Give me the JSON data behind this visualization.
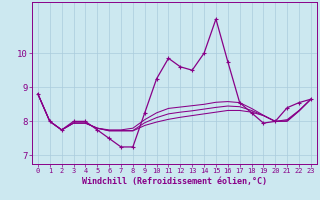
{
  "xlabel": "Windchill (Refroidissement éolien,°C)",
  "background_color": "#cce8f0",
  "line_color": "#880088",
  "marker": "+",
  "x": [
    0,
    1,
    2,
    3,
    4,
    5,
    6,
    7,
    8,
    9,
    10,
    11,
    12,
    13,
    14,
    15,
    16,
    17,
    18,
    19,
    20,
    21,
    22,
    23
  ],
  "series_main": [
    8.8,
    8.0,
    7.75,
    8.0,
    8.0,
    7.75,
    7.5,
    7.25,
    7.25,
    8.25,
    9.25,
    9.85,
    9.6,
    9.5,
    10.0,
    11.0,
    9.75,
    8.55,
    8.25,
    7.95,
    8.0,
    8.4,
    8.55,
    8.65
  ],
  "series_smooth1": [
    8.8,
    8.0,
    7.75,
    7.95,
    7.95,
    7.8,
    7.75,
    7.75,
    7.8,
    8.05,
    8.25,
    8.38,
    8.42,
    8.46,
    8.5,
    8.56,
    8.58,
    8.55,
    8.38,
    8.18,
    8.0,
    8.05,
    8.32,
    8.65
  ],
  "series_smooth2": [
    8.8,
    8.0,
    7.75,
    7.95,
    7.95,
    7.8,
    7.72,
    7.72,
    7.72,
    7.88,
    7.98,
    8.06,
    8.12,
    8.17,
    8.22,
    8.27,
    8.32,
    8.32,
    8.27,
    8.17,
    8.0,
    8.0,
    8.3,
    8.65
  ],
  "series_smooth3": [
    8.8,
    8.0,
    7.75,
    7.95,
    7.95,
    7.8,
    7.73,
    7.73,
    7.73,
    7.96,
    8.11,
    8.22,
    8.27,
    8.31,
    8.36,
    8.41,
    8.45,
    8.43,
    8.32,
    8.17,
    8.0,
    8.02,
    8.31,
    8.65
  ],
  "ylim": [
    6.75,
    11.5
  ],
  "yticks": [
    7,
    8,
    9,
    10
  ],
  "xticks": [
    0,
    1,
    2,
    3,
    4,
    5,
    6,
    7,
    8,
    9,
    10,
    11,
    12,
    13,
    14,
    15,
    16,
    17,
    18,
    19,
    20,
    21,
    22,
    23
  ],
  "grid_color": "#aaccdd",
  "label_color": "#880088",
  "markersize": 3,
  "linewidth_main": 0.9,
  "linewidth_smooth": 0.75
}
